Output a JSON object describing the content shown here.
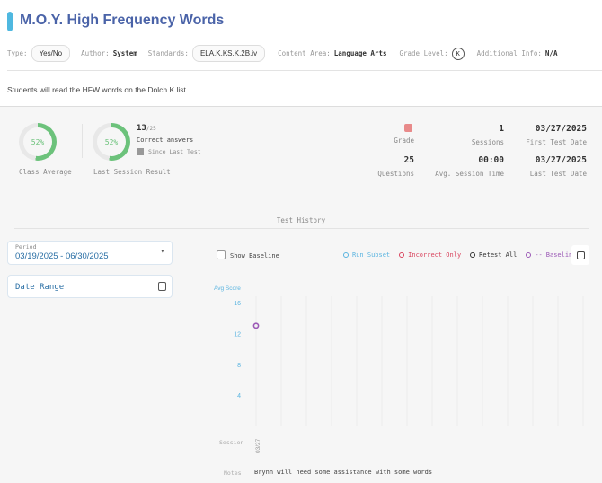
{
  "header": {
    "title": "M.O.Y. High Frequency Words",
    "type_label": "Type:",
    "type_value": "Yes/No",
    "author_label": "Author:",
    "author_value": "System",
    "standards_label": "Standards:",
    "standards_value": "ELA.K.KS.K.2B.iv",
    "content_area_label": "Content Area:",
    "content_area_value": "Language Arts",
    "grade_level_label": "Grade Level:",
    "grade_level_value": "K",
    "additional_info_label": "Additional Info:",
    "additional_info_value": "N/A",
    "description": "Students will read the HFW words on the Dolch K list."
  },
  "summary": {
    "class_average": {
      "percent": 52,
      "label": "52%",
      "caption": "Class Average"
    },
    "last_session": {
      "percent": 52,
      "label": "52%",
      "caption": "Last Session Result",
      "correct": "13",
      "total": "/25",
      "correct_label": "Correct answers",
      "since_label": "Since Last Test"
    },
    "stats": [
      {
        "value": "",
        "label": "Grade"
      },
      {
        "value": "1",
        "label": "Sessions"
      },
      {
        "value": "03/27/2025",
        "label": "First Test Date"
      },
      {
        "value": "25",
        "label": "Questions"
      },
      {
        "value": "00:00",
        "label": "Avg. Session Time"
      },
      {
        "value": "03/27/2025",
        "label": "Last Test Date"
      }
    ],
    "grade_color": "#e88a8a"
  },
  "history": {
    "title": "Test History",
    "period_label": "Period",
    "period_value": "03/19/2025 - 06/30/2025",
    "date_range_label": "Date Range",
    "show_baseline": "Show Baseline",
    "legend": [
      {
        "label": "Run Subset",
        "color": "#5ab4e0"
      },
      {
        "label": "Incorrect Only",
        "color": "#d9445e"
      },
      {
        "label": "Retest All",
        "color": "#333333"
      },
      {
        "label": "Baseline",
        "color": "#9b59b6"
      }
    ],
    "session_label": "Session",
    "notes_label": "Notes",
    "notes_value": "Brynn will need some assistance with some words"
  },
  "chart_data": {
    "type": "scatter",
    "ylabel": "Avg Score",
    "ylim": [
      0,
      16
    ],
    "yticks": [
      4,
      8,
      12,
      16
    ],
    "categories": [
      "03/27"
    ],
    "series": [
      {
        "name": "Baseline",
        "values": [
          13
        ],
        "color": "#9b59b6"
      }
    ],
    "grid": true
  }
}
